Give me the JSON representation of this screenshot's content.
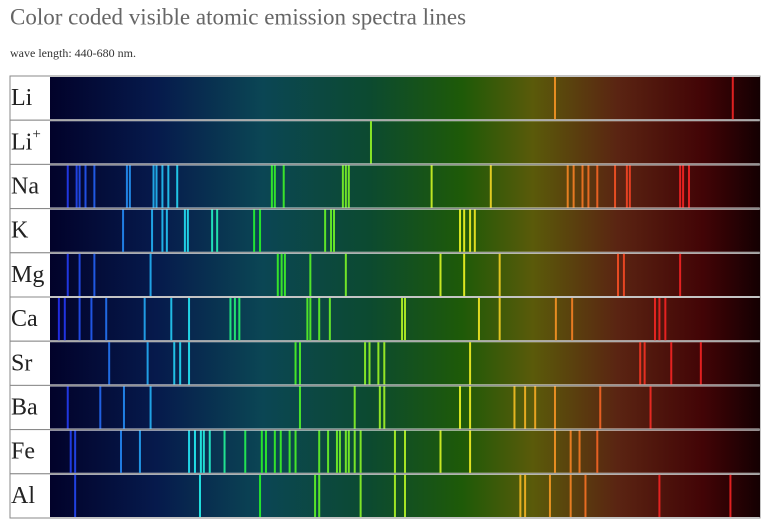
{
  "chart_data": {
    "type": "spectra",
    "title": "Color coded visible atomic emission spectra lines",
    "subtitle": "wave length: 440-680 nm.",
    "xlim": [
      440,
      680
    ],
    "rows": [
      {
        "label": "Li",
        "lines": [
          610.7,
          670.8
        ]
      },
      {
        "label": "Li",
        "charge": "+",
        "lines": [
          548.5
        ]
      },
      {
        "label": "Na",
        "lines": [
          446,
          449,
          450,
          452,
          455,
          466,
          467,
          475,
          476,
          478,
          480,
          483,
          515,
          516,
          519,
          539,
          540,
          541,
          569,
          589,
          615,
          617,
          620,
          622,
          625,
          631,
          635,
          636,
          653,
          654,
          656
        ]
      },
      {
        "label": "K",
        "lines": [
          464.7,
          474.5,
          478,
          479.5,
          485.6,
          486.6,
          494.8,
          496.5,
          509,
          511,
          533,
          535,
          536,
          578.6,
          580,
          582,
          583.6
        ]
      },
      {
        "label": "Mg",
        "lines": [
          446,
          450,
          455,
          474,
          517,
          518.3,
          519.4,
          528,
          540,
          572,
          580,
          592,
          632,
          634,
          653
        ]
      },
      {
        "label": "Ca",
        "lines": [
          443,
          445,
          450,
          454,
          459,
          472,
          481,
          487,
          501,
          502.5,
          504,
          527,
          528,
          531,
          534.6,
          559,
          560,
          585,
          592,
          611,
          616.5,
          644.5,
          646,
          648
        ]
      },
      {
        "label": "Sr",
        "lines": [
          460,
          473,
          482,
          484,
          487,
          523,
          524.5,
          546.5,
          548,
          551,
          553,
          582,
          639.5,
          641,
          650,
          660
        ]
      },
      {
        "label": "Ba",
        "lines": [
          446,
          457,
          465,
          474,
          524.5,
          543,
          551.5,
          553,
          578.6,
          582,
          597,
          600.6,
          604,
          610.7,
          626,
          643
        ]
      },
      {
        "label": "Fe",
        "lines": [
          447,
          448.5,
          464,
          470.4,
          487,
          489,
          491,
          492,
          494,
          499,
          506,
          511.6,
          513,
          516,
          518,
          521,
          523,
          531,
          534,
          537,
          538,
          540,
          541,
          543,
          545,
          556.6,
          560,
          572,
          582,
          610.7,
          616,
          619,
          625
        ]
      },
      {
        "label": "Al",
        "lines": [
          448.5,
          490.7,
          511,
          529.6,
          531,
          545,
          556.6,
          560,
          599,
          600.6,
          609,
          616,
          621,
          646,
          670
        ]
      }
    ]
  }
}
